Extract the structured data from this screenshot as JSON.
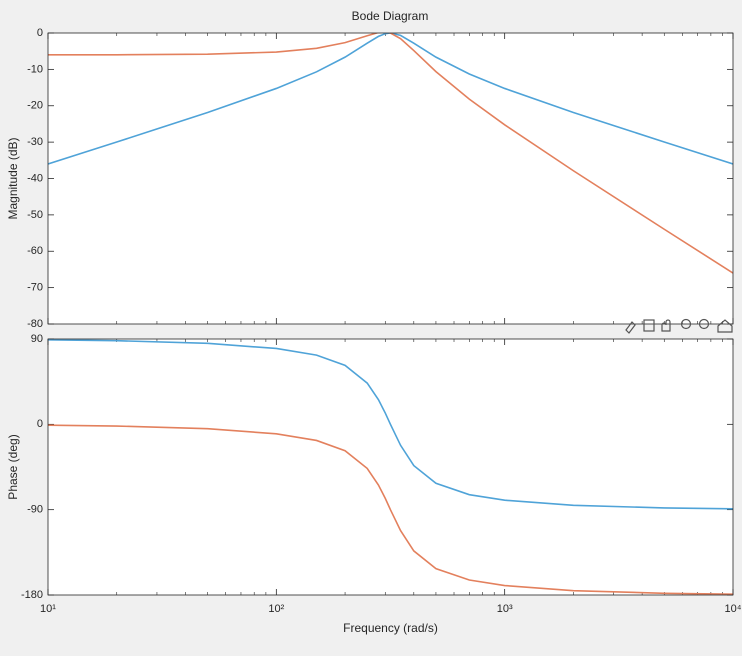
{
  "chart_data": [
    {
      "type": "line",
      "title": "Bode Diagram",
      "y_label": "Magnitude (dB)",
      "x_scale": "log",
      "x": [
        10,
        20,
        50,
        100,
        150,
        200,
        250,
        280,
        300,
        316,
        350,
        400,
        500,
        700,
        1000,
        2000,
        5000,
        10000
      ],
      "series": [
        {
          "color": "#4fa3d8",
          "values": [
            -36.0,
            -29.97,
            -21.85,
            -15.24,
            -10.67,
            -6.63,
            -2.79,
            -0.93,
            -0.19,
            0,
            -0.66,
            -2.79,
            -6.63,
            -11.27,
            -15.24,
            -21.85,
            -29.97,
            -36.0
          ]
        },
        {
          "color": "#e3805d",
          "values": [
            -6.0,
            -5.99,
            -5.83,
            -5.24,
            -4.2,
            -2.65,
            -0.75,
            0.13,
            0.27,
            0,
            -1.55,
            -4.83,
            -10.61,
            -18.18,
            -25.24,
            -37.87,
            -53.95,
            -66.0
          ]
        }
      ],
      "xlim": [
        10,
        10000
      ],
      "xticks": [
        10,
        100,
        1000,
        10000
      ],
      "ylim": [
        -80,
        0
      ],
      "yticks": [
        -80,
        -70,
        -60,
        -50,
        -40,
        -30,
        -20,
        -10,
        0
      ],
      "grid": false
    },
    {
      "type": "line",
      "y_label": "Phase (deg)",
      "x_label": "Frequency  (rad/s)",
      "x_scale": "log",
      "x": [
        10,
        20,
        50,
        100,
        150,
        200,
        250,
        280,
        300,
        316,
        350,
        400,
        500,
        700,
        1000,
        2000,
        5000,
        10000
      ],
      "series": [
        {
          "color": "#4fa3d8",
          "values": [
            89.1,
            88.2,
            85.4,
            80.0,
            73.0,
            62.2,
            43.5,
            26.0,
            11.9,
            0,
            -22.1,
            -43.5,
            -62.2,
            -74.2,
            -80.0,
            -85.4,
            -88.2,
            -89.1
          ]
        },
        {
          "color": "#e3805d",
          "values": [
            -0.9,
            -1.8,
            -4.6,
            -10.0,
            -17.0,
            -27.8,
            -46.5,
            -64.0,
            -78.1,
            -90,
            -112.1,
            -133.5,
            -152.2,
            -164.2,
            -170.0,
            -175.4,
            -178.2,
            -179.1
          ]
        }
      ],
      "xlim": [
        10,
        10000
      ],
      "xticks": [
        {
          "value": 10,
          "label": "10¹"
        },
        {
          "value": 100,
          "label": "10²"
        },
        {
          "value": 1000,
          "label": "10³"
        },
        {
          "value": 10000,
          "label": "10⁴"
        }
      ],
      "ylim": [
        -180,
        90
      ],
      "yticks": [
        -180,
        -90,
        0,
        90
      ],
      "grid": false
    }
  ]
}
